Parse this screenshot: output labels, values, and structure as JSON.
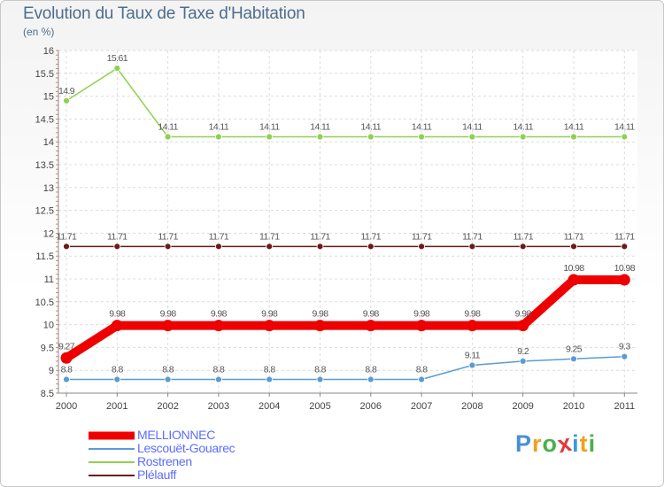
{
  "chart_data": {
    "type": "line",
    "title": "Evolution du Taux de Taxe d'Habitation",
    "subtitle": "(en %)",
    "x": [
      "2000",
      "2001",
      "2002",
      "2003",
      "2004",
      "2005",
      "2006",
      "2007",
      "2008",
      "2009",
      "2010",
      "2011"
    ],
    "ylim": [
      8.5,
      16
    ],
    "yticks": [
      "8.5",
      "9",
      "9.5",
      "10",
      "10.5",
      "11",
      "11.5",
      "12",
      "12.5",
      "13",
      "13.5",
      "14",
      "14.5",
      "15",
      "15.5",
      "16"
    ],
    "series": [
      {
        "name": "MELLIONNEC",
        "color": "#ee0000",
        "values": [
          9.27,
          9.98,
          9.98,
          9.98,
          9.98,
          9.98,
          9.98,
          9.98,
          9.98,
          9.98,
          10.98,
          10.98
        ],
        "labels": [
          "9.27",
          "9.98",
          "9.98",
          "9.98",
          "9.98",
          "9.98",
          "9.98",
          "9.98",
          "9.98",
          "9.98",
          "10.98",
          "10.98"
        ]
      },
      {
        "name": "Lescouët-Gouarec",
        "color": "#5a9bd5",
        "values": [
          8.8,
          8.8,
          8.8,
          8.8,
          8.8,
          8.8,
          8.8,
          8.8,
          9.11,
          9.2,
          9.25,
          9.3
        ],
        "labels": [
          "8.8",
          "8.8",
          "8.8",
          "8.8",
          "8.8",
          "8.8",
          "8.8",
          "8.8",
          "9.11",
          "9.2",
          "9.25",
          "9.3"
        ]
      },
      {
        "name": "Rostrenen",
        "color": "#8fd14f",
        "values": [
          14.9,
          15.61,
          14.11,
          14.11,
          14.11,
          14.11,
          14.11,
          14.11,
          14.11,
          14.11,
          14.11,
          14.11
        ],
        "labels": [
          "14.9",
          "15.61",
          "14.11",
          "14.11",
          "14.11",
          "14.11",
          "14.11",
          "14.11",
          "14.11",
          "14.11",
          "14.11",
          "14.11"
        ]
      },
      {
        "name": "Plélauff",
        "color": "#6b1a1a",
        "values": [
          11.71,
          11.71,
          11.71,
          11.71,
          11.71,
          11.71,
          11.71,
          11.71,
          11.71,
          11.71,
          11.71,
          11.71
        ],
        "labels": [
          "11.71",
          "11.71",
          "11.71",
          "11.71",
          "11.71",
          "11.71",
          "11.71",
          "11.71",
          "11.71",
          "11.71",
          "11.71",
          "11.71"
        ]
      }
    ]
  },
  "legend": {
    "items": [
      "MELLIONNEC",
      "Lescouët-Gouarec",
      "Rostrenen",
      "Plélauff"
    ]
  },
  "logo": {
    "letters": [
      "P",
      "r",
      "o",
      "x",
      "i",
      "t",
      "i"
    ],
    "colors": [
      "#4a8fd6",
      "#f0a020",
      "#4ab04a",
      "#e03a3a",
      "#3a9ae0",
      "#f0a020",
      "#4ab04a"
    ]
  }
}
